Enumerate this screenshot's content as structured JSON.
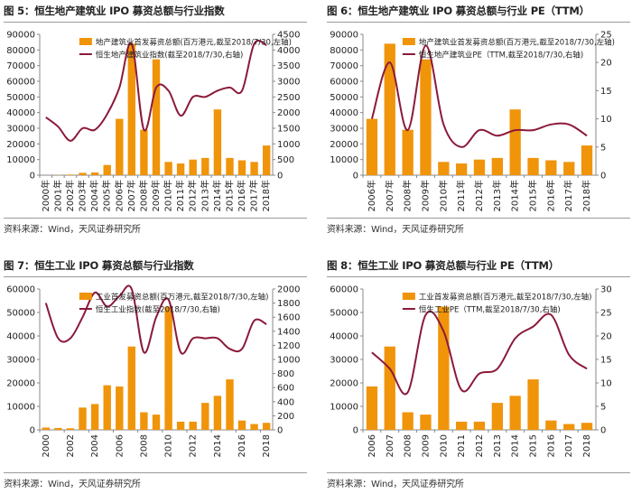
{
  "panels": [
    {
      "title": "图 5：恒生地产建筑业 IPO 募资总额与行业指数",
      "source": "资料来源：Wind，天风证券研究所"
    },
    {
      "title": "图 6：恒生地产建筑业 IPO 募资总额与行业 PE（TTM）",
      "source": "资料来源：Wind，天风证券研究所"
    },
    {
      "title": "图 7：恒生工业 IPO 募资总额与行业指数",
      "source": "资料来源：Wind，天风证券研究所"
    },
    {
      "title": "图 8：恒生工业 IPO 募资总额与行业 PE（TTM）",
      "source": "资料来源：Wind，天风证券研究所"
    }
  ],
  "colors": {
    "bar": "#F0940A",
    "line": "#8B1A3A",
    "axis": "#888888",
    "text": "#222222"
  },
  "chart_data": [
    {
      "type": "bar+line",
      "categories": [
        "2000年",
        "2001年",
        "2002年",
        "2003年",
        "2004年",
        "2005年",
        "2006年",
        "2007年",
        "2008年",
        "2009年",
        "2010年",
        "2011年",
        "2012年",
        "2013年",
        "2014年",
        "2015年",
        "2016年",
        "2017年",
        "2018年"
      ],
      "label_every": 1,
      "rotate_labels": true,
      "bar_series": {
        "name": "地产建筑业首发募资总额(百万港元,截至2018/7/30,左轴)",
        "values": [
          0,
          100,
          400,
          1500,
          1800,
          6500,
          36000,
          84000,
          29000,
          74000,
          8500,
          7500,
          10000,
          11000,
          42000,
          11000,
          9500,
          8500,
          19000
        ]
      },
      "line_series": {
        "name": "恒生地产建筑业指数(截至2018/7/30,右轴)",
        "values": [
          1850,
          1550,
          1100,
          1500,
          1450,
          1950,
          2800,
          4200,
          1450,
          2800,
          2700,
          1900,
          2500,
          2500,
          2700,
          2800,
          2700,
          4200,
          4150
        ]
      },
      "y_left": {
        "min": 0,
        "max": 90000,
        "step": 10000
      },
      "y_right": {
        "min": 0,
        "max": 4500,
        "step": 500
      }
    },
    {
      "type": "bar+line",
      "categories": [
        "2006年",
        "2007年",
        "2008年",
        "2009年",
        "2010年",
        "2011年",
        "2012年",
        "2013年",
        "2014年",
        "2015年",
        "2016年",
        "2017年",
        "2018年"
      ],
      "label_every": 1,
      "rotate_labels": true,
      "bar_series": {
        "name": "地产建筑业首发募资总额(百万港元,截至2018/7/30,左轴)",
        "values": [
          36000,
          84000,
          29000,
          74000,
          8500,
          7500,
          10000,
          11000,
          42000,
          11000,
          9500,
          8500,
          19000
        ]
      },
      "line_series": {
        "name": "恒生地产建筑业PE（TTM,截至2018/7/30,右轴)",
        "values": [
          10,
          20,
          8,
          23,
          9,
          5,
          8,
          7,
          8,
          8,
          9,
          9,
          7
        ]
      },
      "y_left": {
        "min": 0,
        "max": 90000,
        "step": 10000
      },
      "y_right": {
        "min": 0,
        "max": 25,
        "step": 5
      }
    },
    {
      "type": "bar+line",
      "categories": [
        "2000",
        "2001",
        "2002",
        "2003",
        "2004",
        "2005",
        "2006",
        "2007",
        "2008",
        "2009",
        "2010",
        "2011",
        "2012",
        "2013",
        "2014",
        "2015",
        "2016",
        "2017",
        "2018"
      ],
      "label_every": 2,
      "rotate_labels": true,
      "bar_series": {
        "name": "工业首发募资总额(百万港元,截至2018/7/30,左轴)",
        "values": [
          1000,
          800,
          700,
          9500,
          11000,
          19000,
          18500,
          35500,
          7500,
          6500,
          52500,
          3500,
          3500,
          11500,
          14500,
          21500,
          4000,
          2500,
          3000
        ]
      },
      "line_series": {
        "name": "恒生工业指数(截至2018/7/30,右轴)",
        "values": [
          1800,
          1300,
          1300,
          1600,
          1950,
          1750,
          1900,
          2000,
          1100,
          1600,
          1850,
          1100,
          1300,
          1300,
          1300,
          1150,
          1150,
          1550,
          1500
        ]
      },
      "y_left": {
        "min": 0,
        "max": 60000,
        "step": 10000
      },
      "y_right": {
        "min": 0,
        "max": 2000,
        "step": 200
      }
    },
    {
      "type": "bar+line",
      "categories": [
        "2006",
        "2007",
        "2008",
        "2009",
        "2010",
        "2011",
        "2012",
        "2013",
        "2014",
        "2015",
        "2016",
        "2017",
        "2018"
      ],
      "label_every": 1,
      "rotate_labels": true,
      "bar_series": {
        "name": "工业首发募资总额(百万港元,截至2018/7/30,左轴)",
        "values": [
          18500,
          35500,
          7500,
          6500,
          52500,
          3500,
          3500,
          11500,
          14500,
          21500,
          4000,
          2500,
          3000
        ]
      },
      "line_series": {
        "name": "恒生工业PE（TTM,截至2018/7/30,右轴)",
        "values": [
          16.5,
          13,
          8,
          24.5,
          21,
          8.5,
          12,
          13,
          19.5,
          22,
          24.5,
          16,
          13
        ]
      },
      "y_left": {
        "min": 0,
        "max": 60000,
        "step": 10000
      },
      "y_right": {
        "min": 0,
        "max": 30,
        "step": 5
      }
    }
  ]
}
